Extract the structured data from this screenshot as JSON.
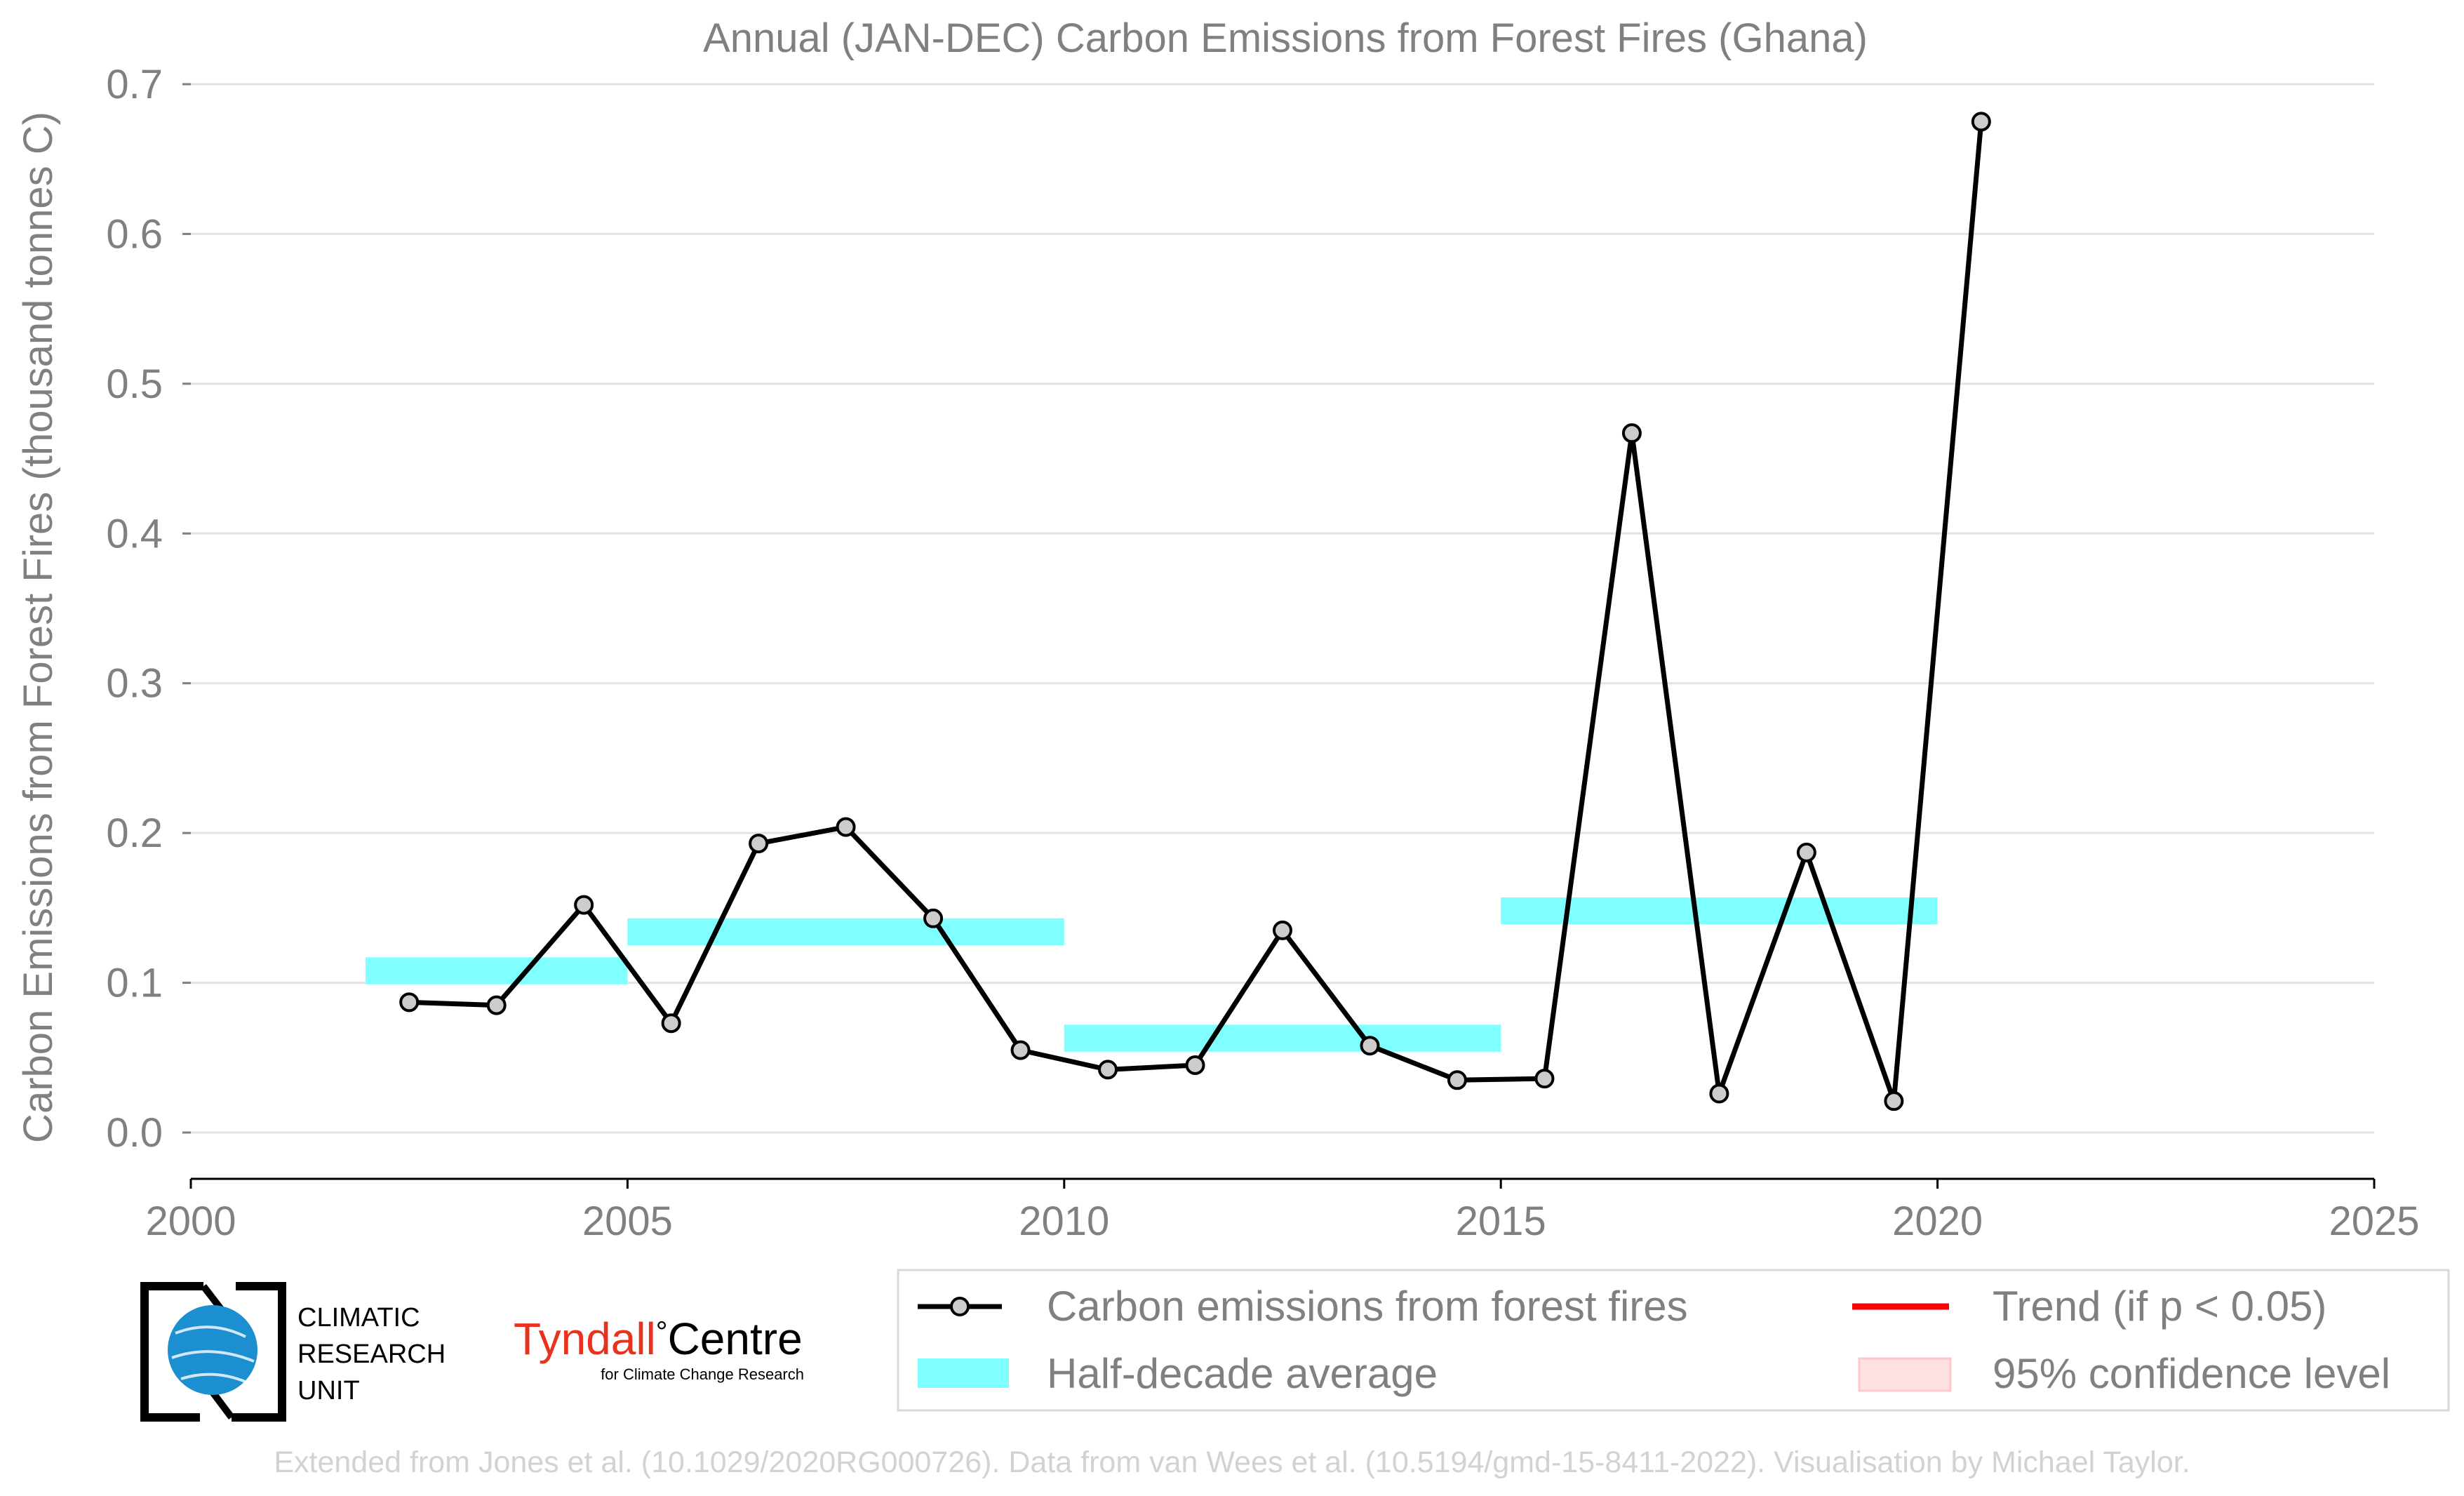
{
  "chart_data": {
    "type": "line",
    "title": "Annual (JAN-DEC) Carbon Emissions from Forest Fires (Ghana)",
    "xlabel": "",
    "ylabel": "Carbon Emissions from Forest Fires (thousand tonnes C)",
    "xlim": [
      2000,
      2025
    ],
    "ylim": [
      0,
      0.7
    ],
    "xticks": [
      2000,
      2005,
      2010,
      2015,
      2020,
      2025
    ],
    "xtick_labels": [
      "2000",
      "2005",
      "2010",
      "2015",
      "2020",
      "2025"
    ],
    "yticks": [
      0.0,
      0.1,
      0.2,
      0.3,
      0.4,
      0.5,
      0.6,
      0.7
    ],
    "ytick_labels": [
      "0.0",
      "0.1",
      "0.2",
      "0.3",
      "0.4",
      "0.5",
      "0.6",
      "0.7"
    ],
    "grid": "horizontal",
    "series": [
      {
        "name": "Carbon emissions from forest fires",
        "color": "#000000",
        "marker_fill": "#cccccc",
        "x": [
          2002.5,
          2003.5,
          2004.5,
          2005.5,
          2006.5,
          2007.5,
          2008.5,
          2009.5,
          2010.5,
          2011.5,
          2012.5,
          2013.5,
          2014.5,
          2015.5,
          2016.5,
          2017.5,
          2018.5,
          2019.5,
          2020.5
        ],
        "y": [
          0.087,
          0.085,
          0.152,
          0.073,
          0.193,
          0.204,
          0.143,
          0.055,
          0.042,
          0.045,
          0.135,
          0.058,
          0.035,
          0.036,
          0.467,
          0.026,
          0.187,
          0.021,
          0.675
        ]
      }
    ],
    "half_decade_average": {
      "name": "Half-decade average",
      "color": "#7fffff",
      "bands": [
        {
          "x0": 2002,
          "x1": 2005,
          "y": 0.108
        },
        {
          "x0": 2005,
          "x1": 2010,
          "y": 0.134
        },
        {
          "x0": 2010,
          "x1": 2015,
          "y": 0.063
        },
        {
          "x0": 2015,
          "x1": 2020,
          "y": 0.148
        }
      ],
      "thickness": 0.018
    },
    "legend": {
      "placement": "bottom-right",
      "items": [
        {
          "label": "Carbon emissions from forest fires",
          "type": "line-marker",
          "color": "#000000"
        },
        {
          "label": "Trend (if p < 0.05)",
          "type": "line",
          "color": "#ff0000"
        },
        {
          "label": "Half-decade average",
          "type": "patch",
          "color": "#7fffff"
        },
        {
          "label": "95% confidence level",
          "type": "patch",
          "color": "#ffe0e0"
        }
      ]
    }
  },
  "logos": {
    "cru_line1": "CLIMATIC",
    "cru_line2": "RESEARCH",
    "cru_line3": "UNIT",
    "tyndall_main": "Tyndall",
    "tyndall_degree": "°",
    "tyndall_centre": "Centre",
    "tyndall_sub": "for Climate Change Research",
    "tyndall_color": "#e8321e"
  },
  "footer": "Extended from Jones et al. (10.1029/2020RG000726). Data from van Wees et al. (10.5194/gmd-15-8411-2022). Visualisation by Michael Taylor."
}
